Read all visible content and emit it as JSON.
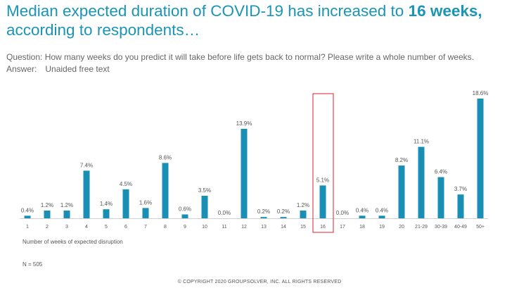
{
  "header": {
    "title_prefix": "Median expected duration of COVID-19 has increased to ",
    "title_highlight": "16 weeks,",
    "title_suffix": "according to respondents…"
  },
  "question": {
    "text": "Question: How many weeks do you predict it will take before life gets back to normal? Please write a whole number of weeks.",
    "answer_label": "Answer:",
    "answer_value": "Unaided free text"
  },
  "chart_data": {
    "type": "bar",
    "categories": [
      "1",
      "2",
      "3",
      "4",
      "5",
      "6",
      "7",
      "8",
      "9",
      "10",
      "11",
      "12",
      "13",
      "14",
      "15",
      "16",
      "17",
      "18",
      "19",
      "20",
      "21-29",
      "30-39",
      "40-49",
      "50+"
    ],
    "values": [
      0.4,
      1.2,
      1.2,
      7.4,
      1.4,
      4.5,
      1.6,
      8.6,
      0.6,
      3.5,
      0.0,
      13.9,
      0.2,
      0.2,
      1.2,
      5.1,
      0.0,
      0.4,
      0.4,
      8.2,
      11.1,
      6.4,
      3.7,
      18.6
    ],
    "value_labels": [
      "0.4%",
      "1.2%",
      "1.2%",
      "7.4%",
      "1.4%",
      "4.5%",
      "1.6%",
      "8.6%",
      "0.6%",
      "3.5%",
      "0.0%",
      "13.9%",
      "0.2%",
      "0.2%",
      "1.2%",
      "5.1%",
      "0.0%",
      "0.4%",
      "0.4%",
      "8.2%",
      "11.1%",
      "6.4%",
      "3.7%",
      "18.6%"
    ],
    "xlabel": "Number of weeks of expected disruption",
    "ylabel": "",
    "ylim": [
      0,
      18.6
    ],
    "highlight_category": "16",
    "bar_color": "#1a8fb4",
    "highlight_box_color": "#d9262e"
  },
  "footer": {
    "sample_size": "N = 505",
    "copyright": "© COPYRIGHT 2020 GROUPSOLVER, INC. ALL RIGHTS RESERVED"
  }
}
